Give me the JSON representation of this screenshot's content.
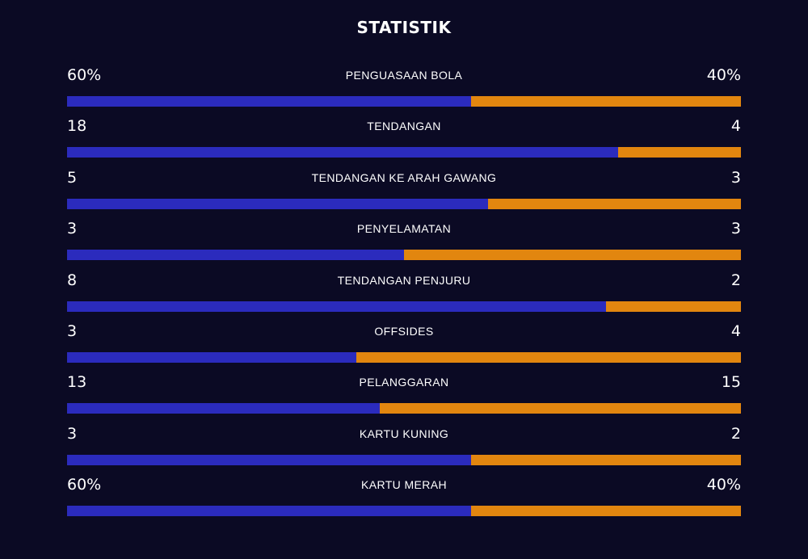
{
  "title": "STATISTIK",
  "colors": {
    "background": "#0b0a24",
    "home": "#2b2bbd",
    "away": "#e2860f"
  },
  "stats": [
    {
      "name": "PENGUASAAN BOLA",
      "left": "60%",
      "right": "40%",
      "home_share": 0.6
    },
    {
      "name": "TENDANGAN",
      "left": "18",
      "right": "4",
      "home_share": 0.818
    },
    {
      "name": "TENDANGAN KE ARAH GAWANG",
      "left": "5",
      "right": "3",
      "home_share": 0.625
    },
    {
      "name": "PENYELAMATAN",
      "left": "3",
      "right": "3",
      "home_share": 0.5
    },
    {
      "name": "TENDANGAN PENJURU",
      "left": "8",
      "right": "2",
      "home_share": 0.8
    },
    {
      "name": "OFFSIDES",
      "left": "3",
      "right": "4",
      "home_share": 0.429
    },
    {
      "name": "PELANGGARAN",
      "left": "13",
      "right": "15",
      "home_share": 0.464
    },
    {
      "name": "KARTU KUNING",
      "left": "3",
      "right": "2",
      "home_share": 0.6
    },
    {
      "name": "KARTU MERAH",
      "left": "60%",
      "right": "40%",
      "home_share": 0.6
    }
  ]
}
